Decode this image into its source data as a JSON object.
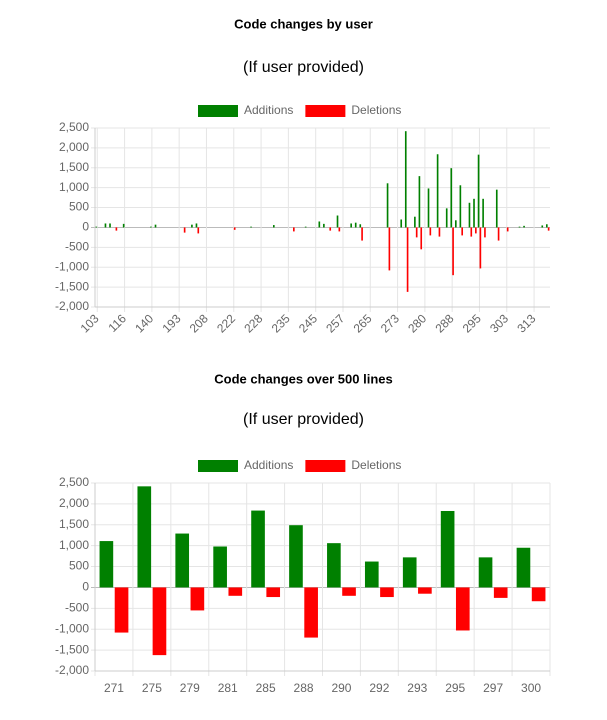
{
  "chart_data": [
    {
      "type": "bar",
      "title": "Code changes by user",
      "subtitle": "(If user provided)",
      "categories": [
        "103",
        null,
        null,
        null,
        null,
        null,
        "116",
        null,
        null,
        null,
        null,
        null,
        "140",
        null,
        null,
        null,
        null,
        null,
        "193",
        null,
        null,
        null,
        null,
        null,
        "208",
        null,
        null,
        null,
        null,
        null,
        "222",
        null,
        null,
        null,
        null,
        null,
        "228",
        null,
        null,
        null,
        null,
        null,
        "235",
        null,
        null,
        null,
        null,
        null,
        "245",
        null,
        null,
        null,
        null,
        null,
        "257",
        null,
        null,
        null,
        null,
        null,
        "265",
        null,
        null,
        null,
        null,
        null,
        "273",
        null,
        null,
        null,
        null,
        null,
        "280",
        null,
        null,
        null,
        null,
        null,
        "288",
        null,
        null,
        null,
        null,
        null,
        "295",
        null,
        null,
        null,
        null,
        null,
        "303",
        null,
        null,
        null,
        null,
        null,
        "313",
        null,
        null,
        null
      ],
      "series": [
        {
          "name": "Additions",
          "color": "#008000",
          "values": [
            20,
            0,
            100,
            100,
            0,
            0,
            90,
            0,
            0,
            0,
            0,
            0,
            20,
            70,
            0,
            0,
            0,
            0,
            0,
            0,
            0,
            70,
            100,
            0,
            0,
            0,
            0,
            0,
            0,
            0,
            0,
            0,
            0,
            0,
            20,
            0,
            0,
            0,
            0,
            60,
            0,
            0,
            0,
            0,
            0,
            0,
            20,
            0,
            0,
            150,
            90,
            0,
            0,
            300,
            0,
            0,
            100,
            120,
            80,
            0,
            0,
            0,
            0,
            0,
            1110,
            0,
            0,
            200,
            2420,
            0,
            270,
            1290,
            0,
            980,
            0,
            1840,
            0,
            480,
            1490,
            180,
            1060,
            0,
            620,
            720,
            1830,
            720,
            0,
            0,
            950,
            0,
            0,
            0,
            0,
            20,
            40,
            0,
            0,
            0,
            50,
            80
          ]
        },
        {
          "name": "Deletions",
          "color": "#ff0000",
          "values": [
            0,
            0,
            0,
            0,
            -80,
            0,
            0,
            0,
            0,
            0,
            0,
            0,
            0,
            0,
            0,
            0,
            0,
            0,
            0,
            -130,
            0,
            0,
            -150,
            0,
            0,
            0,
            0,
            0,
            0,
            0,
            -60,
            0,
            0,
            0,
            0,
            0,
            0,
            0,
            0,
            0,
            0,
            0,
            0,
            -100,
            0,
            0,
            0,
            0,
            0,
            0,
            0,
            -80,
            0,
            -100,
            0,
            0,
            0,
            0,
            -330,
            0,
            0,
            0,
            0,
            0,
            -1080,
            0,
            0,
            0,
            -1620,
            0,
            -250,
            -550,
            0,
            -200,
            0,
            -230,
            0,
            0,
            -1200,
            0,
            -200,
            0,
            -230,
            -150,
            -1030,
            -250,
            0,
            0,
            -330,
            0,
            -100,
            0,
            0,
            0,
            0,
            0,
            0,
            0,
            0,
            -80
          ]
        }
      ],
      "ylim": [
        -2000,
        2500
      ],
      "yticks": [
        {
          "value": -2000,
          "label": "-2,000"
        },
        {
          "value": -1500,
          "label": "-1,500"
        },
        {
          "value": -1000,
          "label": "-1,000"
        },
        -500,
        0,
        500,
        {
          "value": 1000,
          "label": "1,000"
        },
        {
          "value": 1500,
          "label": "1,500"
        },
        {
          "value": 2000,
          "label": "2,000"
        },
        {
          "value": 2500,
          "label": "2,500"
        }
      ],
      "grid": true,
      "legend": "top"
    },
    {
      "type": "bar",
      "title": "Code changes over 500 lines",
      "subtitle": "(If user provided)",
      "categories": [
        "271",
        "275",
        "279",
        "281",
        "285",
        "288",
        "290",
        "292",
        "293",
        "295",
        "297",
        "300"
      ],
      "series": [
        {
          "name": "Additions",
          "color": "#008000",
          "values": [
            1110,
            2420,
            1290,
            980,
            1840,
            1490,
            1060,
            620,
            720,
            1830,
            720,
            950
          ]
        },
        {
          "name": "Deletions",
          "color": "#ff0000",
          "values": [
            -1080,
            -1620,
            -550,
            -200,
            -230,
            -1200,
            -200,
            -230,
            -150,
            -1030,
            -250,
            -330
          ]
        }
      ],
      "ylim": [
        -2000,
        2500
      ],
      "yticks": [
        {
          "value": -2000,
          "label": "-2,000"
        },
        {
          "value": -1500,
          "label": "-1,500"
        },
        {
          "value": -1000,
          "label": "-1,000"
        },
        -500,
        0,
        500,
        {
          "value": 1000,
          "label": "1,000"
        },
        {
          "value": 1500,
          "label": "1,500"
        },
        {
          "value": 2000,
          "label": "2,000"
        },
        {
          "value": 2500,
          "label": "2,500"
        }
      ],
      "grid": true,
      "legend": "top"
    }
  ]
}
